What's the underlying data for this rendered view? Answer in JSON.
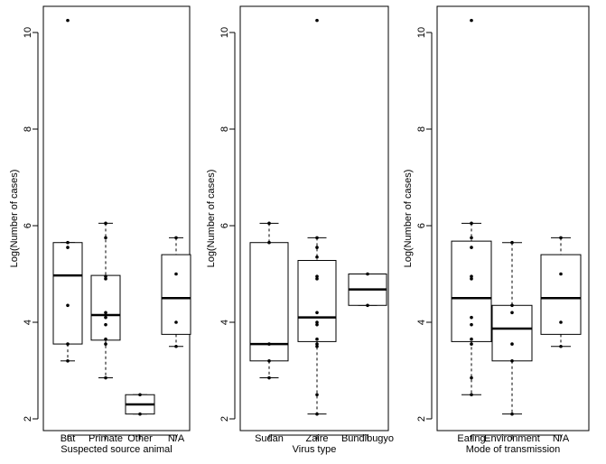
{
  "chart_data": [
    {
      "type": "boxplot",
      "xlabel": "Suspected source animal",
      "ylabel": "Log(Number of cases)",
      "ylim": [
        1.85,
        10.55
      ],
      "yticks": [
        "2",
        "4",
        "6",
        "8",
        "10"
      ],
      "categories": [
        "Bat",
        "Primate",
        "Other",
        "N/A"
      ],
      "boxes": [
        {
          "whisker_low": 3.2,
          "q1": 3.55,
          "median": 4.97,
          "q3": 5.65,
          "whisker_high": 5.65
        },
        {
          "whisker_low": 2.85,
          "q1": 3.63,
          "median": 4.15,
          "q3": 4.97,
          "whisker_high": 6.05
        },
        {
          "whisker_low": 2.1,
          "q1": 2.1,
          "median": 2.3,
          "q3": 2.5,
          "whisker_high": 2.5
        },
        {
          "whisker_low": 3.5,
          "q1": 3.75,
          "median": 4.5,
          "q3": 5.4,
          "whisker_high": 5.75
        }
      ],
      "points": [
        [
          10.25,
          5.65,
          5.55,
          4.35,
          3.55,
          3.2
        ],
        [
          6.05,
          5.75,
          4.95,
          4.9,
          4.2,
          4.1,
          3.95,
          3.65,
          3.55,
          2.85
        ],
        [
          2.5,
          2.1
        ],
        [
          5.75,
          5.0,
          4.0,
          3.5
        ]
      ]
    },
    {
      "type": "boxplot",
      "xlabel": "Virus type",
      "ylabel": "Log(Number of cases)",
      "ylim": [
        1.85,
        10.55
      ],
      "yticks": [
        "2",
        "4",
        "6",
        "8",
        "10"
      ],
      "categories": [
        "Sudan",
        "Zaire",
        "Bundibugyo"
      ],
      "boxes": [
        {
          "whisker_low": 2.85,
          "q1": 3.2,
          "median": 3.55,
          "q3": 5.65,
          "whisker_high": 6.05
        },
        {
          "whisker_low": 2.1,
          "q1": 3.6,
          "median": 4.1,
          "q3": 5.28,
          "whisker_high": 5.75
        },
        {
          "whisker_low": 4.35,
          "q1": 4.35,
          "median": 4.68,
          "q3": 5.0,
          "whisker_high": 5.0
        }
      ],
      "points": [
        [
          6.05,
          5.65,
          3.55,
          3.2,
          2.85
        ],
        [
          10.25,
          5.75,
          5.55,
          5.35,
          4.95,
          4.9,
          4.2,
          4.0,
          3.95,
          3.65,
          3.55,
          3.5,
          2.5,
          2.1
        ],
        [
          5.0,
          4.35
        ]
      ]
    },
    {
      "type": "boxplot",
      "xlabel": "Mode of transmission",
      "ylabel": "Log(Number of cases)",
      "ylim": [
        1.85,
        10.55
      ],
      "yticks": [
        "2",
        "4",
        "6",
        "8",
        "10"
      ],
      "categories": [
        "Eating",
        "Environment",
        "N/A"
      ],
      "boxes": [
        {
          "whisker_low": 2.5,
          "q1": 3.6,
          "median": 4.5,
          "q3": 5.68,
          "whisker_high": 6.05
        },
        {
          "whisker_low": 2.1,
          "q1": 3.2,
          "median": 3.87,
          "q3": 4.35,
          "whisker_high": 5.65
        },
        {
          "whisker_low": 3.5,
          "q1": 3.75,
          "median": 4.5,
          "q3": 5.4,
          "whisker_high": 5.75
        }
      ],
      "points": [
        [
          10.25,
          6.05,
          5.75,
          5.55,
          4.95,
          4.9,
          4.1,
          3.95,
          3.65,
          3.55,
          2.85,
          2.5
        ],
        [
          5.65,
          4.35,
          4.2,
          3.55,
          3.2,
          2.1
        ],
        [
          5.75,
          5.0,
          4.0,
          3.5
        ]
      ]
    }
  ]
}
